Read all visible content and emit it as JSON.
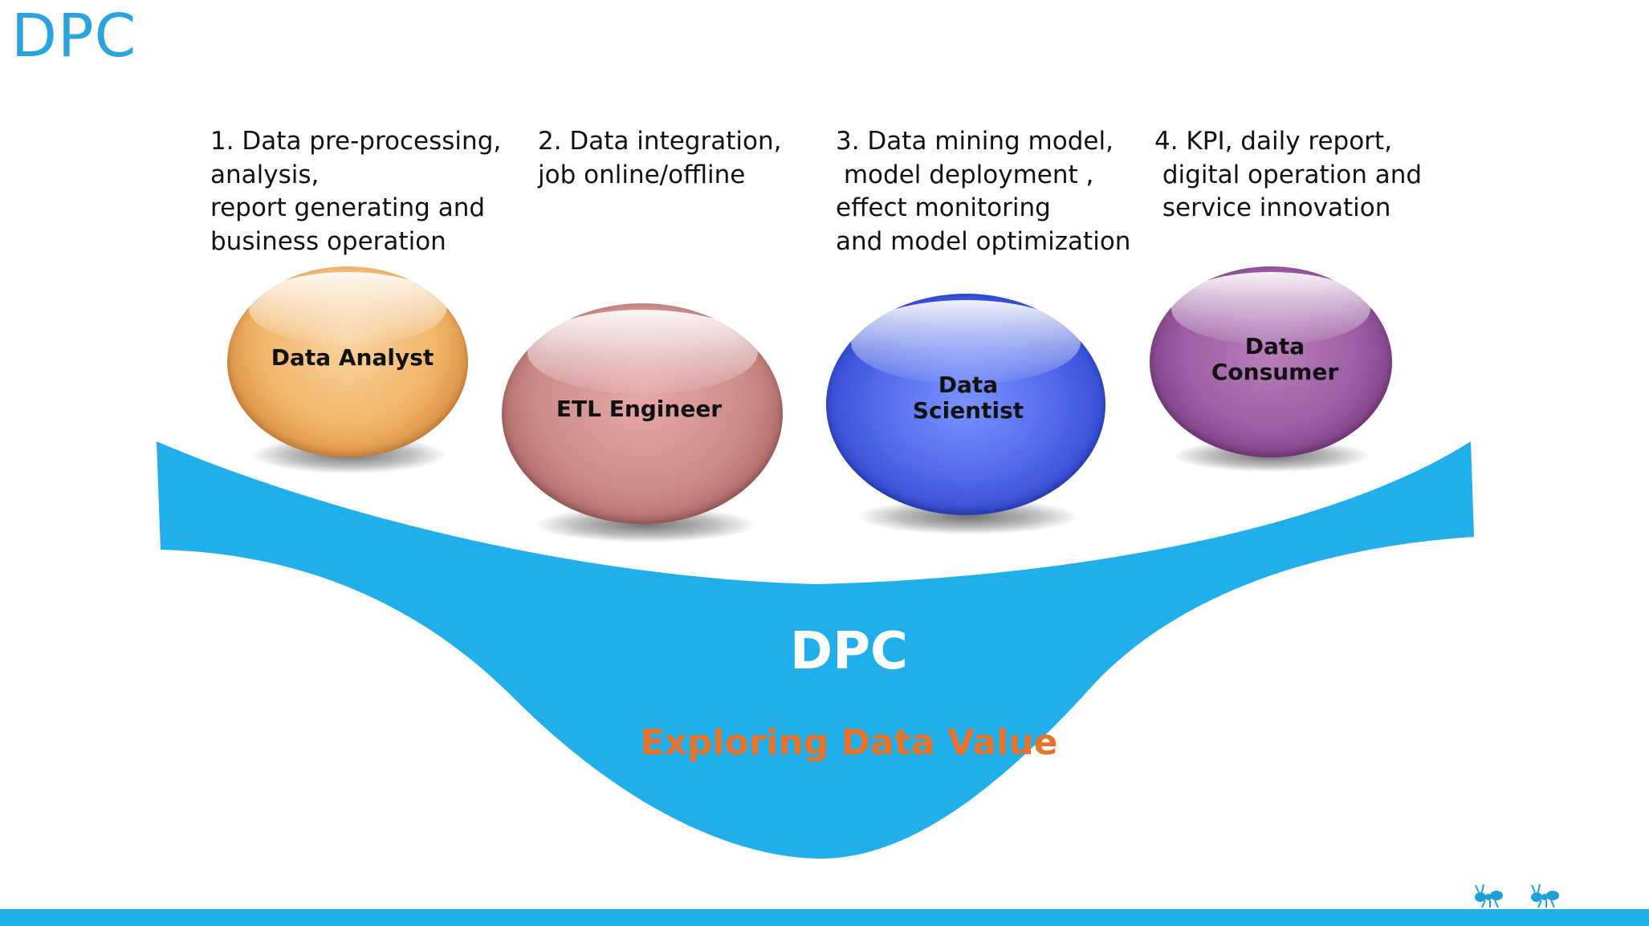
{
  "slide": {
    "title": "DPC"
  },
  "roles": [
    {
      "name": "Data Analyst",
      "description": "1. Data pre-processing,\nanalysis,\nreport generating and\nbusiness operation",
      "color": "#f1b56a"
    },
    {
      "name": "ETL Engineer",
      "description": "2. Data integration,\njob online/offline",
      "color": "#cc8c8a"
    },
    {
      "name": "Data\nScientist",
      "description": "3. Data mining model,\n model deployment ,\neffect monitoring\nand model optimization",
      "color": "#4f69ea"
    },
    {
      "name": "Data\nConsumer",
      "description": "4. KPI, daily report,\n digital operation and\n service innovation",
      "color": "#9e5fa4"
    }
  ],
  "platform": {
    "title": "DPC",
    "subtitle": "Exploring Data Value",
    "color": "#1eaeea",
    "subtitle_color": "#e8742c"
  },
  "footer": {
    "logo_icon": "ant-icon",
    "bar_color": "#1eaeea"
  }
}
